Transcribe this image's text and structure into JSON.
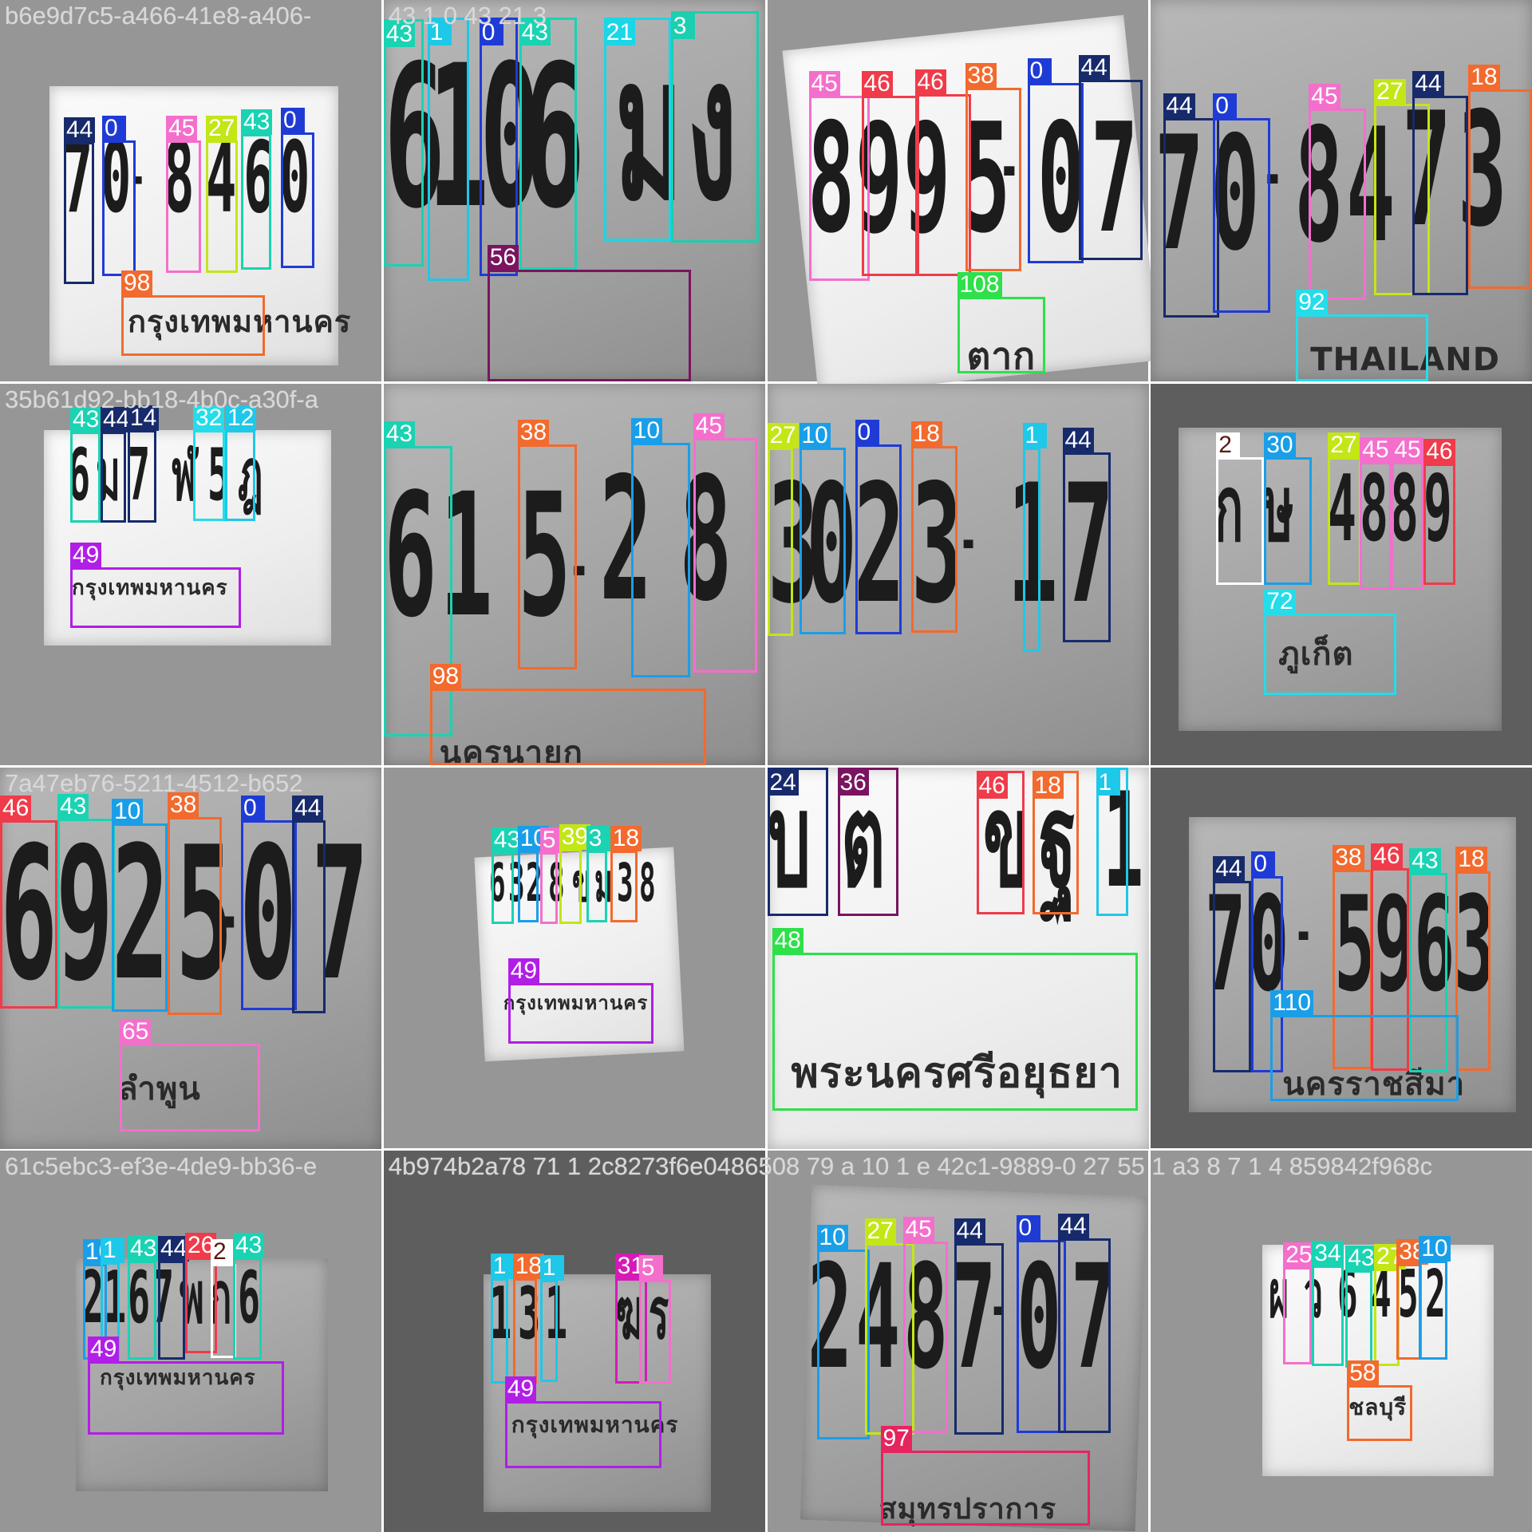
{
  "mosaic": {
    "captions": [
      "b6e9d7c5-a466-41e8-a406-",
      "43 1 0 43 21 3",
      "",
      "",
      "35b61d92-bb18-4b0c-a30f-a",
      "",
      "",
      "",
      "7a47eb76-5211-4512-b652",
      "",
      "",
      "",
      "61c5ebc3-ef3e-4de9-bb36-e",
      "4b974b2a78 71 1 2c8273f6e0486508 79 a 10 1 e 42c1-9889-0 27 55 1 a3 8 7 1 4 859842f968c",
      "",
      ""
    ],
    "tiles": [
      {
        "name": "tile-1",
        "glyphs": [
          "7",
          "0",
          "-",
          "8",
          "4",
          "6",
          "0"
        ],
        "province": "กรุงเทพมหานคร",
        "boxes": [
          {
            "label": "44",
            "color": "#172a6b"
          },
          {
            "label": "0",
            "color": "#1f3bd6"
          },
          {
            "label": "45",
            "color": "#f46fcc"
          },
          {
            "label": "27",
            "color": "#c3e617"
          },
          {
            "label": "43",
            "color": "#19d3b3"
          },
          {
            "label": "0",
            "color": "#1f3bd6"
          },
          {
            "label": "98",
            "color": "#f26a2e"
          }
        ]
      },
      {
        "name": "tile-2",
        "glyphs": [
          "6",
          "1",
          "0",
          "6",
          "ม",
          "ง"
        ],
        "province": "",
        "boxes": [
          {
            "label": "43",
            "color": "#19d3b3"
          },
          {
            "label": "1",
            "color": "#1ec8e8"
          },
          {
            "label": "0",
            "color": "#1f3bd6"
          },
          {
            "label": "43",
            "color": "#19d3b3"
          },
          {
            "label": "21",
            "color": "#1bd6e6"
          },
          {
            "label": "3",
            "color": "#1ccfb0"
          },
          {
            "label": "56",
            "color": "#7a1460"
          }
        ]
      },
      {
        "name": "tile-3",
        "glyphs": [
          "8",
          "9",
          "9",
          "5",
          "-",
          "0",
          "7"
        ],
        "province": "ตาก",
        "boxes": [
          {
            "label": "45",
            "color": "#f46fcc"
          },
          {
            "label": "46",
            "color": "#ef3b4a"
          },
          {
            "label": "46",
            "color": "#ef3b4a"
          },
          {
            "label": "38",
            "color": "#f26a2e"
          },
          {
            "label": "0",
            "color": "#1f3bd6"
          },
          {
            "label": "44",
            "color": "#172a6b"
          },
          {
            "label": "108",
            "color": "#2ee04a"
          }
        ]
      },
      {
        "name": "tile-4",
        "glyphs": [
          "7",
          "0",
          "-",
          "8",
          "4",
          "7",
          "3"
        ],
        "province": "THAILAND",
        "boxes": [
          {
            "label": "44",
            "color": "#172a6b"
          },
          {
            "label": "0",
            "color": "#1f3bd6"
          },
          {
            "label": "45",
            "color": "#f46fcc"
          },
          {
            "label": "27",
            "color": "#c3e617"
          },
          {
            "label": "44",
            "color": "#172a6b"
          },
          {
            "label": "18",
            "color": "#f26a2e"
          },
          {
            "label": "92",
            "color": "#25dcea"
          }
        ]
      },
      {
        "name": "tile-5",
        "glyphs": [
          "6",
          "ม",
          "7",
          "ฬ",
          "5",
          "ฎ"
        ],
        "province": "กรุงเทพมหานคร",
        "boxes": [
          {
            "label": "43",
            "color": "#19d3b3"
          },
          {
            "label": "44",
            "color": "#172a6b"
          },
          {
            "label": "14",
            "color": "#172a6b"
          },
          {
            "label": "32",
            "color": "#25dcea"
          },
          {
            "label": "12",
            "color": "#1ec8e8"
          },
          {
            "label": "49",
            "color": "#b11ee6"
          }
        ]
      },
      {
        "name": "tile-6",
        "glyphs": [
          "6",
          "1",
          "5",
          "-",
          "2",
          "8"
        ],
        "province": "นครนายก",
        "boxes": [
          {
            "label": "43",
            "color": "#19d3b3"
          },
          {
            "label": "38",
            "color": "#f26a2e"
          },
          {
            "label": "10",
            "color": "#1a9ee8"
          },
          {
            "label": "45",
            "color": "#f46fcc"
          },
          {
            "label": "98",
            "color": "#f26a2e"
          }
        ]
      },
      {
        "name": "tile-7",
        "glyphs": [
          "3",
          "0",
          "2",
          "3",
          "-",
          "1",
          "7"
        ],
        "province": "",
        "boxes": [
          {
            "label": "27",
            "color": "#c3e617"
          },
          {
            "label": "10",
            "color": "#1a9ee8"
          },
          {
            "label": "0",
            "color": "#1f3bd6"
          },
          {
            "label": "18",
            "color": "#f26a2e"
          },
          {
            "label": "1",
            "color": "#1ec8e8"
          },
          {
            "label": "44",
            "color": "#172a6b"
          }
        ]
      },
      {
        "name": "tile-8",
        "glyphs": [
          "ก",
          "ษ",
          "4",
          "8",
          "8",
          "9"
        ],
        "province": "ภูเก็ต",
        "boxes": [
          {
            "label": "2",
            "color": "#ffffff"
          },
          {
            "label": "30",
            "color": "#1a9ee8"
          },
          {
            "label": "27",
            "color": "#c3e617"
          },
          {
            "label": "45",
            "color": "#f46fcc"
          },
          {
            "label": "45",
            "color": "#f46fcc"
          },
          {
            "label": "46",
            "color": "#ef3b4a"
          },
          {
            "label": "72",
            "color": "#25dcea"
          }
        ]
      },
      {
        "name": "tile-9",
        "glyphs": [
          "6",
          "9",
          "2",
          "5",
          "-",
          "0",
          "7"
        ],
        "province": "ลำพูน",
        "boxes": [
          {
            "label": "46",
            "color": "#ef3b4a"
          },
          {
            "label": "43",
            "color": "#19d3b3"
          },
          {
            "label": "10",
            "color": "#1a9ee8"
          },
          {
            "label": "38",
            "color": "#f26a2e"
          },
          {
            "label": "0",
            "color": "#1f3bd6"
          },
          {
            "label": "44",
            "color": "#172a6b"
          },
          {
            "label": "65",
            "color": "#f46fcc"
          }
        ]
      },
      {
        "name": "tile-10",
        "glyphs": [
          "6",
          "3",
          "2",
          "8",
          "ข",
          "ม",
          "3",
          "8"
        ],
        "province": "กรุงเทพมหานคร",
        "boxes": [
          {
            "label": "43",
            "color": "#19d3b3"
          },
          {
            "label": "10",
            "color": "#1a9ee8"
          },
          {
            "label": "5",
            "color": "#f46fcc"
          },
          {
            "label": "39",
            "color": "#c3e617"
          },
          {
            "label": "3",
            "color": "#19d3b3"
          },
          {
            "label": "18",
            "color": "#f26a2e"
          },
          {
            "label": "49",
            "color": "#b11ee6"
          }
        ]
      },
      {
        "name": "tile-11",
        "glyphs": [
          "บ",
          "ต",
          "ข",
          "ฐ",
          "1"
        ],
        "province": "พระนครศรีอยุธยา",
        "boxes": [
          {
            "label": "24",
            "color": "#172a6b"
          },
          {
            "label": "36",
            "color": "#7a1460"
          },
          {
            "label": "46",
            "color": "#ef3b4a"
          },
          {
            "label": "18",
            "color": "#f26a2e"
          },
          {
            "label": "1",
            "color": "#1ec8e8"
          },
          {
            "label": "48",
            "color": "#2ee04a"
          }
        ]
      },
      {
        "name": "tile-12",
        "glyphs": [
          "7",
          "0",
          "-",
          "5",
          "9",
          "6",
          "3"
        ],
        "province": "นครราชสีมา",
        "boxes": [
          {
            "label": "44",
            "color": "#172a6b"
          },
          {
            "label": "0",
            "color": "#1f3bd6"
          },
          {
            "label": "38",
            "color": "#f26a2e"
          },
          {
            "label": "46",
            "color": "#ef3b4a"
          },
          {
            "label": "43",
            "color": "#19d3b3"
          },
          {
            "label": "18",
            "color": "#f26a2e"
          },
          {
            "label": "110",
            "color": "#1a9ee8"
          }
        ]
      },
      {
        "name": "tile-13",
        "glyphs": [
          "2",
          "1",
          "6",
          "7",
          "พ",
          "ก",
          "6"
        ],
        "province": "กรุงเทพมหานคร",
        "boxes": [
          {
            "label": "10",
            "color": "#1a9ee8"
          },
          {
            "label": "1",
            "color": "#1ec8e8"
          },
          {
            "label": "43",
            "color": "#19d3b3"
          },
          {
            "label": "44",
            "color": "#172a6b"
          },
          {
            "label": "26",
            "color": "#ef3b4a"
          },
          {
            "label": "2",
            "color": "#ffffff"
          },
          {
            "label": "43",
            "color": "#19d3b3"
          },
          {
            "label": "49",
            "color": "#b11ee6"
          }
        ]
      },
      {
        "name": "tile-14",
        "glyphs": [
          "1",
          "3",
          "1",
          "ฆ",
          "ร"
        ],
        "province": "กรุงเทพมหานคร",
        "boxes": [
          {
            "label": "1",
            "color": "#1ec8e8"
          },
          {
            "label": "18",
            "color": "#f26a2e"
          },
          {
            "label": "1",
            "color": "#1ec8e8"
          },
          {
            "label": "31",
            "color": "#d61ab8"
          },
          {
            "label": "5",
            "color": "#f46fcc"
          },
          {
            "label": "49",
            "color": "#b11ee6"
          }
        ]
      },
      {
        "name": "tile-15",
        "glyphs": [
          "2",
          "4",
          "8",
          "7",
          "-",
          "0",
          "7"
        ],
        "province": "สมุทรปราการ",
        "boxes": [
          {
            "label": "10",
            "color": "#1a9ee8"
          },
          {
            "label": "27",
            "color": "#c3e617"
          },
          {
            "label": "45",
            "color": "#f46fcc"
          },
          {
            "label": "44",
            "color": "#172a6b"
          },
          {
            "label": "0",
            "color": "#1f3bd6"
          },
          {
            "label": "44",
            "color": "#172a6b"
          },
          {
            "label": "97",
            "color": "#e6245e"
          }
        ]
      },
      {
        "name": "tile-16",
        "glyphs": [
          "ผ",
          "ว",
          "6",
          "4",
          "5",
          "2"
        ],
        "province": "ชลบุรี",
        "boxes": [
          {
            "label": "25",
            "color": "#f46fcc"
          },
          {
            "label": "34",
            "color": "#19d3b3"
          },
          {
            "label": "43",
            "color": "#19d3b3"
          },
          {
            "label": "27",
            "color": "#c3e617"
          },
          {
            "label": "38",
            "color": "#f26a2e"
          },
          {
            "label": "10",
            "color": "#1a9ee8"
          },
          {
            "label": "58",
            "color": "#f26a2e"
          }
        ]
      }
    ]
  }
}
